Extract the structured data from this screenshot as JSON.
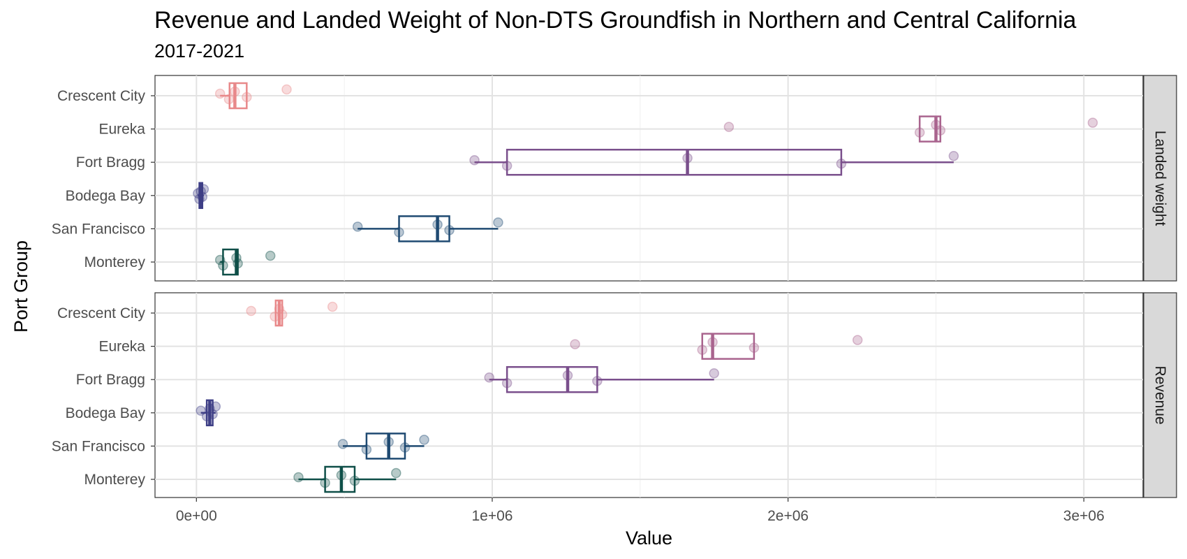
{
  "chart_data": {
    "type": "boxplot",
    "title": "Revenue and Landed Weight of Non-DTS Groundfish in Northern and Central California",
    "subtitle": "2017-2021",
    "xlabel": "Value",
    "ylabel": "Port Group",
    "xlim": [
      -140000,
      3200000
    ],
    "x_ticks": [
      {
        "value": 0,
        "label": "0e+00"
      },
      {
        "value": 1000000,
        "label": "1e+06"
      },
      {
        "value": 2000000,
        "label": "2e+06"
      },
      {
        "value": 3000000,
        "label": "3e+06"
      }
    ],
    "categories": [
      "Crescent City",
      "Eureka",
      "Fort Bragg",
      "Bodega Bay",
      "San Francisco",
      "Monterey"
    ],
    "grid": true,
    "legend": "none",
    "colors": {
      "Crescent City": "#e8898a",
      "Eureka": "#a9648e",
      "Fort Bragg": "#7a4f8c",
      "Bodega Bay": "#3e3f86",
      "San Francisco": "#1f4a72",
      "Monterey": "#0f4f48"
    },
    "panels": [
      {
        "strip_label": "Landed weight",
        "series": [
          {
            "name": "Crescent City",
            "points": [
              80000,
              110000,
              130000,
              170000,
              305000
            ],
            "box": {
              "whisker_low": 80000,
              "q1": 112000,
              "median": 130000,
              "q3": 170000,
              "whisker_high": 170000
            }
          },
          {
            "name": "Eureka",
            "points": [
              1800000,
              2445000,
              2500000,
              2515000,
              3030000
            ],
            "box": {
              "whisker_low": 2445000,
              "q1": 2445000,
              "median": 2500000,
              "q3": 2515000,
              "whisker_high": 2515000
            }
          },
          {
            "name": "Fort Bragg",
            "points": [
              940000,
              1050000,
              1660000,
              2180000,
              2560000
            ],
            "box": {
              "whisker_low": 940000,
              "q1": 1050000,
              "median": 1660000,
              "q3": 2180000,
              "whisker_high": 2560000
            }
          },
          {
            "name": "Bodega Bay",
            "points": [
              5000,
              10000,
              15000,
              20000,
              25000
            ],
            "box": {
              "whisker_low": 5000,
              "q1": 10000,
              "median": 15000,
              "q3": 20000,
              "whisker_high": 25000
            }
          },
          {
            "name": "San Francisco",
            "points": [
              545000,
              685000,
              815000,
              855000,
              1020000
            ],
            "box": {
              "whisker_low": 545000,
              "q1": 685000,
              "median": 815000,
              "q3": 855000,
              "whisker_high": 1020000
            }
          },
          {
            "name": "Monterey",
            "points": [
              80000,
              90000,
              135000,
              140000,
              250000
            ],
            "box": {
              "whisker_low": 80000,
              "q1": 90000,
              "median": 135000,
              "q3": 140000,
              "whisker_high": 140000
            }
          }
        ]
      },
      {
        "strip_label": "Revenue",
        "series": [
          {
            "name": "Crescent City",
            "points": [
              185000,
              265000,
              280000,
              290000,
              460000
            ],
            "box": {
              "whisker_low": 265000,
              "q1": 268000,
              "median": 280000,
              "q3": 290000,
              "whisker_high": 290000
            }
          },
          {
            "name": "Eureka",
            "points": [
              1280000,
              1710000,
              1745000,
              1885000,
              2235000
            ],
            "box": {
              "whisker_low": 1710000,
              "q1": 1710000,
              "median": 1745000,
              "q3": 1885000,
              "whisker_high": 1885000
            }
          },
          {
            "name": "Fort Bragg",
            "points": [
              990000,
              1050000,
              1255000,
              1355000,
              1750000
            ],
            "box": {
              "whisker_low": 990000,
              "q1": 1050000,
              "median": 1255000,
              "q3": 1355000,
              "whisker_high": 1750000
            }
          },
          {
            "name": "Bodega Bay",
            "points": [
              15000,
              35000,
              45000,
              55000,
              65000
            ],
            "box": {
              "whisker_low": 15000,
              "q1": 35000,
              "median": 45000,
              "q3": 55000,
              "whisker_high": 65000
            }
          },
          {
            "name": "San Francisco",
            "points": [
              495000,
              575000,
              650000,
              705000,
              770000
            ],
            "box": {
              "whisker_low": 495000,
              "q1": 575000,
              "median": 650000,
              "q3": 705000,
              "whisker_high": 770000
            }
          },
          {
            "name": "Monterey",
            "points": [
              345000,
              435000,
              490000,
              535000,
              675000
            ],
            "box": {
              "whisker_low": 345000,
              "q1": 435000,
              "median": 490000,
              "q3": 535000,
              "whisker_high": 675000
            }
          }
        ]
      }
    ]
  }
}
